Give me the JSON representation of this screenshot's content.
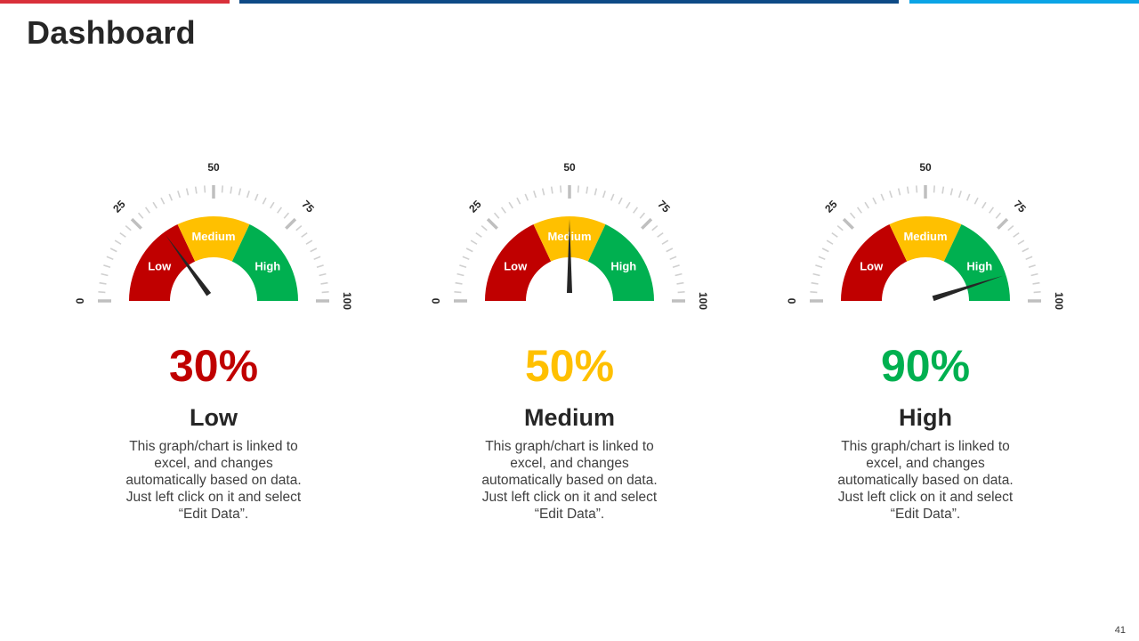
{
  "header": {
    "title": "Dashboard",
    "accent_colors": [
      "#d9303a",
      "#0e4a86",
      "#0aa4e6"
    ]
  },
  "gauge_scale": {
    "min": 0,
    "max": 100,
    "tick_labels": [
      "0",
      "25",
      "50",
      "75",
      "100"
    ],
    "band_labels": [
      "Low",
      "Medium",
      "High"
    ],
    "band_colors": [
      "#c00000",
      "#ffc000",
      "#00b050"
    ]
  },
  "gauges": [
    {
      "value": 30,
      "percent_label": "30%",
      "percent_color": "#c00000",
      "level": "Low",
      "description": "This graph/chart is linked to excel, and changes automatically based on data. Just left click on it and select “Edit Data”."
    },
    {
      "value": 50,
      "percent_label": "50%",
      "percent_color": "#ffc000",
      "level": "Medium",
      "description": "This graph/chart is linked to excel, and changes automatically based on data. Just left click on it and select “Edit Data”."
    },
    {
      "value": 90,
      "percent_label": "90%",
      "percent_color": "#00b050",
      "level": "High",
      "description": "This graph/chart is linked to excel, and changes automatically based on data. Just left click on it and select “Edit Data”."
    }
  ],
  "footer": {
    "page_number": "41"
  }
}
